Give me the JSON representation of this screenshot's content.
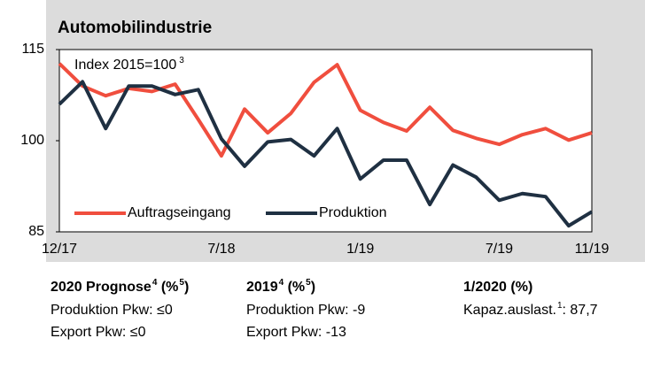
{
  "chart_data": {
    "type": "line",
    "title": "Automobilindustrie",
    "annotation": {
      "text": "Index 2015=100",
      "sup": "3"
    },
    "categories": [
      "12/17",
      null,
      null,
      null,
      null,
      null,
      null,
      "7/18",
      null,
      null,
      null,
      null,
      null,
      "1/19",
      null,
      null,
      null,
      null,
      null,
      "7/19",
      null,
      null,
      null,
      "11/19"
    ],
    "series": [
      {
        "name": "Auftragseingang",
        "color": "#f04e3e",
        "values": [
          112.7,
          109,
          107.4,
          108.6,
          108.1,
          109.3,
          103.5,
          97.5,
          105.2,
          101.3,
          104.5,
          109.6,
          112.5,
          105,
          103,
          101.6,
          105.5,
          101.7,
          100.4,
          99.4,
          101,
          102,
          100.1,
          101.3
        ]
      },
      {
        "name": "Produktion",
        "color": "#1f3042",
        "values": [
          106,
          109.7,
          102,
          109,
          109,
          107.6,
          108.4,
          100.3,
          95.8,
          99.8,
          100.2,
          97.5,
          102,
          93.7,
          96.8,
          96.8,
          89.5,
          96,
          94,
          90.2,
          91.3,
          90.8,
          86,
          88.3
        ]
      }
    ],
    "ylim": [
      85,
      115
    ],
    "yticks": [
      85,
      100,
      115
    ],
    "legend": "lower left"
  },
  "panels": [
    {
      "title": [
        {
          "text": "2020 Prognose"
        },
        {
          "text": "4",
          "sup": true
        },
        {
          "text": " (%"
        },
        {
          "text": "5",
          "sup": true
        },
        {
          "text": ")"
        }
      ],
      "lines": [
        [
          {
            "text": "Produktion Pkw: ≤0"
          }
        ],
        [
          {
            "text": "Export Pkw: ≤0"
          }
        ]
      ]
    },
    {
      "title": [
        {
          "text": "2019"
        },
        {
          "text": "4",
          "sup": true
        },
        {
          "text": " (%"
        },
        {
          "text": "5",
          "sup": true
        },
        {
          "text": ")"
        }
      ],
      "lines": [
        [
          {
            "text": "Produktion Pkw: -9"
          }
        ],
        [
          {
            "text": "Export Pkw: -13"
          }
        ]
      ]
    },
    {
      "title": [
        {
          "text": "1/2020 (%)"
        }
      ],
      "lines": [
        [
          {
            "text": "Kapaz.auslast."
          },
          {
            "text": "1",
            "sup": true
          },
          {
            "text": ": 87,7"
          }
        ]
      ]
    }
  ]
}
